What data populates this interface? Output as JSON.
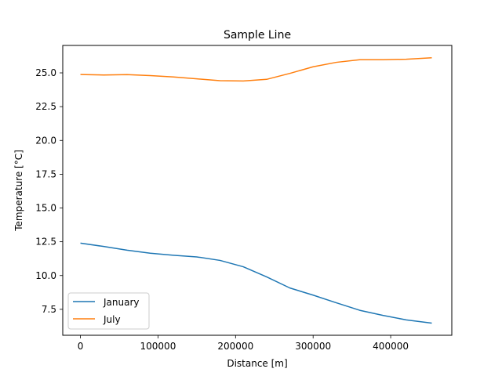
{
  "chart_data": {
    "type": "line",
    "title": "Sample Line",
    "xlabel": "Distance [m]",
    "ylabel": "Temperature [$^\\circ$C]",
    "ylabel_display": "Temperature [°C]",
    "xlim": [
      -22800,
      478800
    ],
    "ylim": [
      5.58,
      27.03
    ],
    "xticks": [
      0,
      100000,
      200000,
      300000,
      400000
    ],
    "xtick_labels": [
      "0",
      "100000",
      "200000",
      "300000",
      "400000"
    ],
    "yticks": [
      7.5,
      10.0,
      12.5,
      15.0,
      17.5,
      20.0,
      22.5,
      25.0
    ],
    "ytick_labels": [
      "7.5",
      "10.0",
      "12.5",
      "15.0",
      "17.5",
      "20.0",
      "22.5",
      "25.0"
    ],
    "grid": false,
    "legend_position": "lower-left",
    "series": [
      {
        "name": "January",
        "color": "#1f77b4",
        "x": [
          0,
          30000,
          60000,
          90000,
          120000,
          150000,
          180000,
          210000,
          240000,
          270000,
          300000,
          330000,
          360000,
          390000,
          420000,
          453000
        ],
        "y": [
          12.4,
          12.15,
          11.88,
          11.65,
          11.5,
          11.38,
          11.12,
          10.65,
          9.9,
          9.08,
          8.55,
          7.98,
          7.43,
          7.05,
          6.72,
          6.48
        ]
      },
      {
        "name": "July",
        "color": "#ff7f0e",
        "x": [
          0,
          30000,
          60000,
          90000,
          120000,
          150000,
          180000,
          210000,
          240000,
          270000,
          300000,
          330000,
          360000,
          390000,
          420000,
          453000
        ],
        "y": [
          24.88,
          24.84,
          24.87,
          24.8,
          24.7,
          24.56,
          24.42,
          24.4,
          24.52,
          24.96,
          25.45,
          25.78,
          25.97,
          25.97,
          26.01,
          26.12
        ]
      }
    ]
  }
}
